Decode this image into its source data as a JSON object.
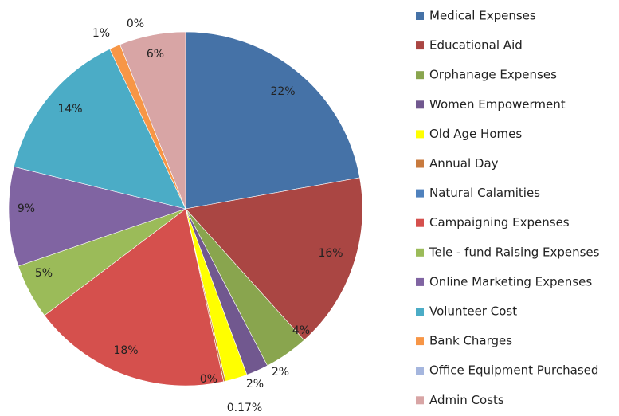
{
  "chart_data": {
    "type": "pie",
    "categories": [
      "Medical Expenses",
      "Educational Aid",
      "Orphanage Expenses",
      "Women Empowerment",
      "Old Age Homes",
      "Annual Day",
      "Natural Calamities",
      "Campaigning Expenses",
      "Tele - fund Raising Expenses",
      "Online Marketing Expenses",
      "Volunteer Cost",
      "Bank Charges",
      "Office Equipment Purchased",
      "Admin Costs"
    ],
    "values": [
      22,
      16,
      4,
      2,
      2,
      0.17,
      0,
      18,
      5,
      9,
      14,
      1,
      0,
      6
    ],
    "value_labels": [
      "22%",
      "16%",
      "4%",
      "2%",
      "2%",
      "0.17%",
      "0%",
      "18%",
      "5%",
      "9%",
      "14%",
      "1%",
      "0%",
      "6%"
    ],
    "colors": [
      "#4572a7",
      "#aa4643",
      "#89a54e",
      "#71588f",
      "#ffff00",
      "#c87a3e",
      "#4f81bd",
      "#d5504d",
      "#9bbb59",
      "#8064a2",
      "#4bacc6",
      "#f79646",
      "#a5b6de",
      "#d8a5a5"
    ],
    "legend": "right"
  }
}
